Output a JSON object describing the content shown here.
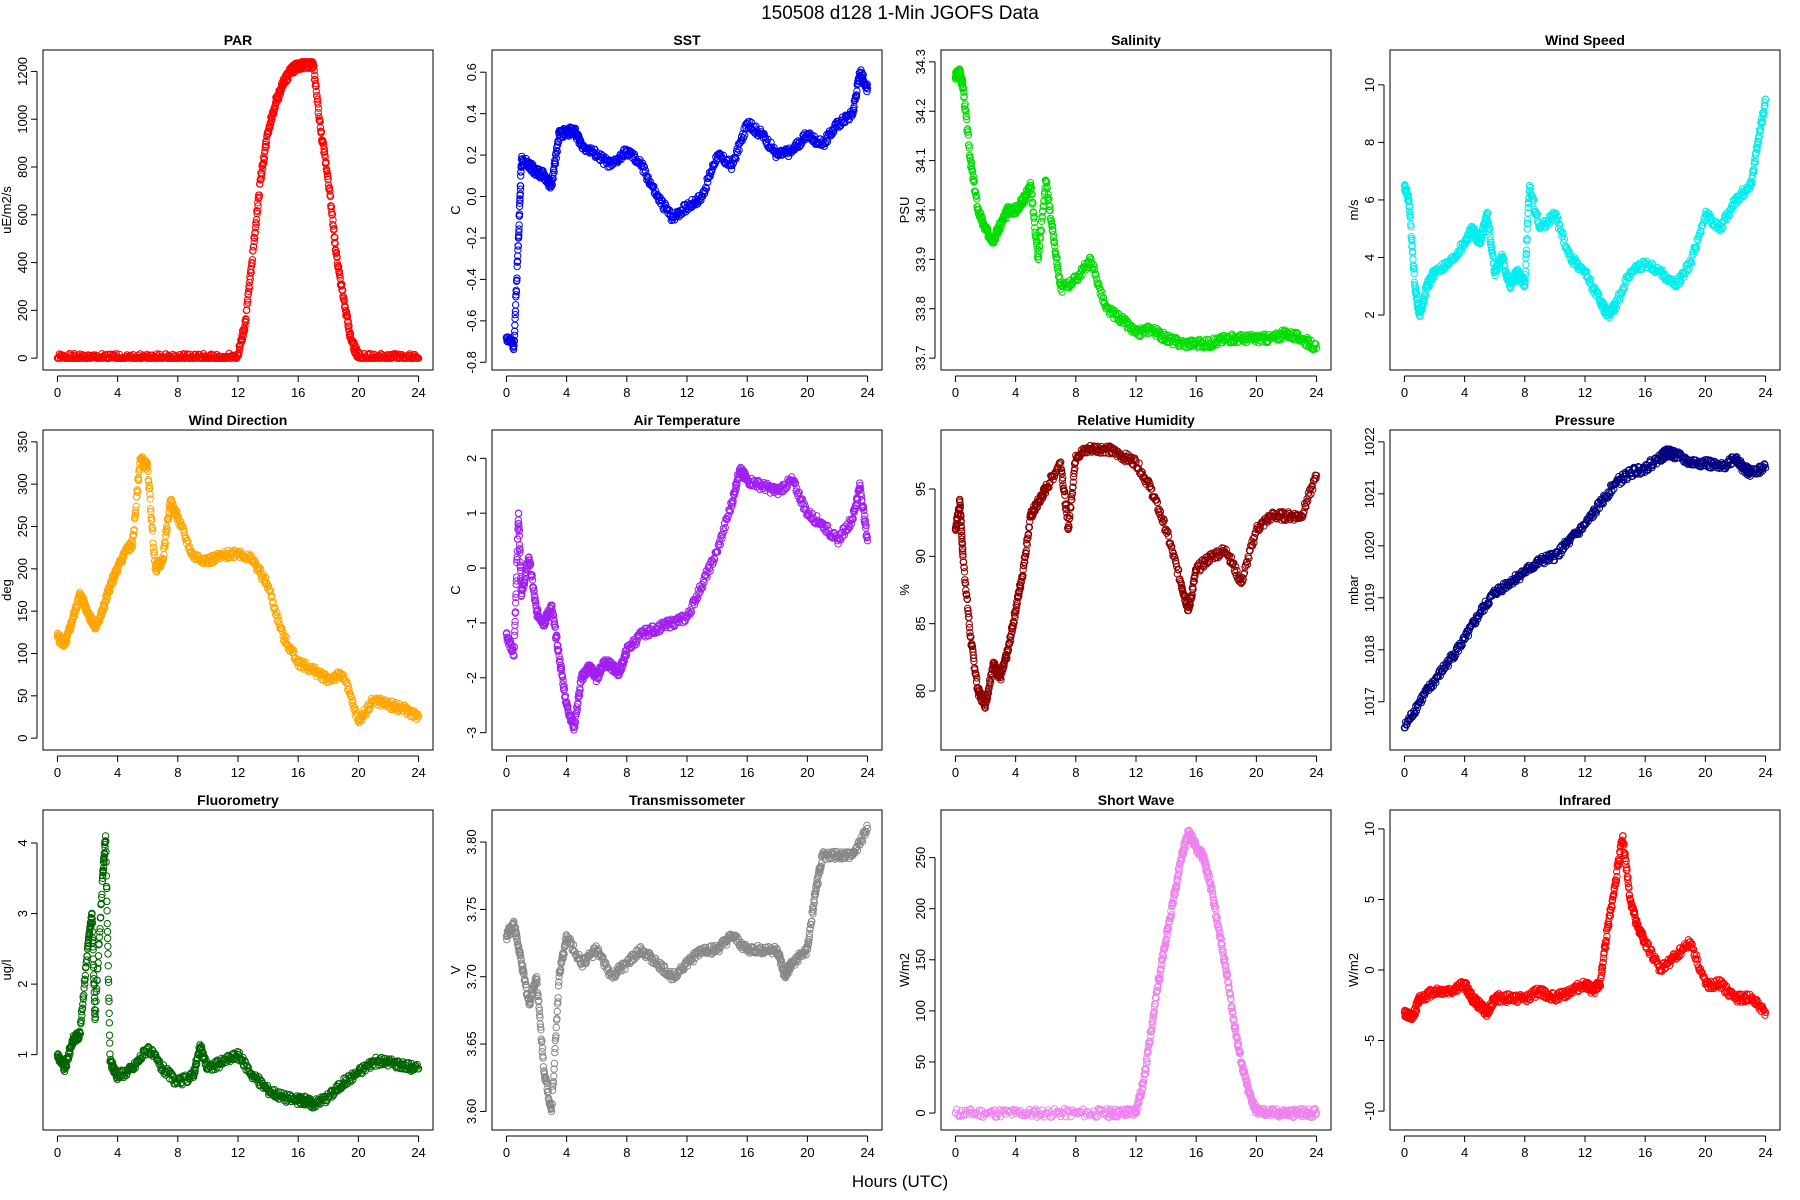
{
  "figure": {
    "title": "150508   d128   1-Min  JGOFS Data",
    "xlabel": "Hours (UTC)"
  },
  "chart_data": [
    {
      "type": "scatter",
      "title": "PAR",
      "ylabel": "uE/m2/s",
      "color": "#ff0000",
      "xlim": [
        0,
        24
      ],
      "xticks": [
        0,
        4,
        8,
        12,
        16,
        20,
        24
      ],
      "ylim": [
        0,
        1240
      ],
      "yticks": [
        0,
        200,
        400,
        600,
        800,
        1000,
        1200
      ],
      "x": [
        0,
        1,
        2,
        3,
        4,
        5,
        6,
        7,
        8,
        9,
        10,
        11,
        12,
        12.5,
        13,
        13.5,
        14,
        14.5,
        15,
        15.5,
        16,
        16.5,
        17,
        17.5,
        18,
        18.5,
        19,
        19.5,
        20,
        21,
        22,
        23,
        24
      ],
      "y": [
        0,
        0,
        0,
        0,
        0,
        0,
        0,
        0,
        0,
        0,
        0,
        0,
        10,
        150,
        450,
        750,
        950,
        1070,
        1150,
        1200,
        1225,
        1230,
        1230,
        950,
        750,
        450,
        250,
        80,
        5,
        0,
        0,
        0,
        0
      ]
    },
    {
      "type": "scatter",
      "title": "SST",
      "ylabel": "C",
      "color": "#0000ee",
      "xlim": [
        0,
        24
      ],
      "xticks": [
        0,
        4,
        8,
        12,
        16,
        20,
        24
      ],
      "ylim": [
        -0.78,
        0.65
      ],
      "yticks": [
        -0.8,
        -0.6,
        -0.4,
        -0.2,
        0.0,
        0.2,
        0.4,
        0.6
      ],
      "x": [
        0,
        0.5,
        0.8,
        1,
        1.5,
        2,
        2.5,
        3,
        3.5,
        4,
        4.5,
        5,
        6,
        7,
        8,
        9,
        10,
        11,
        12,
        13,
        14,
        15,
        16,
        17,
        18,
        19,
        20,
        21,
        22,
        23,
        23.5,
        24
      ],
      "y": [
        -0.68,
        -0.72,
        -0.2,
        0.18,
        0.15,
        0.12,
        0.1,
        0.05,
        0.3,
        0.31,
        0.32,
        0.25,
        0.2,
        0.15,
        0.22,
        0.15,
        0.0,
        -0.1,
        -0.05,
        0.0,
        0.2,
        0.15,
        0.35,
        0.3,
        0.2,
        0.22,
        0.3,
        0.25,
        0.35,
        0.4,
        0.6,
        0.52
      ]
    },
    {
      "type": "scatter",
      "title": "Salinity",
      "ylabel": "PSU",
      "color": "#00dd00",
      "xlim": [
        0,
        24
      ],
      "xticks": [
        0,
        4,
        8,
        12,
        16,
        20,
        24
      ],
      "ylim": [
        33.7,
        34.3
      ],
      "yticks": [
        33.7,
        33.8,
        33.9,
        34.0,
        34.1,
        34.2,
        34.3
      ],
      "x": [
        0,
        0.3,
        0.5,
        1,
        1.5,
        2,
        2.5,
        3,
        3.5,
        4,
        4.5,
        5,
        5.5,
        6,
        6.5,
        7,
        8,
        9,
        10,
        11,
        12,
        13,
        14,
        15,
        16,
        17,
        18,
        19,
        20,
        21,
        22,
        23,
        24
      ],
      "y": [
        34.27,
        34.28,
        34.25,
        34.1,
        34.0,
        33.96,
        33.94,
        33.97,
        34.0,
        34.0,
        34.02,
        34.05,
        33.9,
        34.06,
        33.95,
        33.84,
        33.86,
        33.9,
        33.8,
        33.78,
        33.75,
        33.76,
        33.74,
        33.73,
        33.73,
        33.73,
        33.74,
        33.74,
        33.74,
        33.74,
        33.75,
        33.74,
        33.72
      ]
    },
    {
      "type": "scatter",
      "title": "Wind Speed",
      "ylabel": "m/s",
      "color": "#00eeee",
      "xlim": [
        0,
        24
      ],
      "xticks": [
        0,
        4,
        8,
        12,
        16,
        20,
        24
      ],
      "ylim": [
        0.5,
        10.8
      ],
      "yticks": [
        2,
        4,
        6,
        8,
        10
      ],
      "x": [
        0,
        0.3,
        0.7,
        1,
        1.5,
        2,
        3,
        4,
        4.5,
        5,
        5.5,
        6,
        6.5,
        7,
        7.5,
        8,
        8.3,
        9,
        10,
        11,
        12,
        13,
        13.5,
        14,
        15,
        16,
        17,
        18,
        19,
        20,
        21,
        22,
        23,
        23.5,
        24
      ],
      "y": [
        6.5,
        6.0,
        3.0,
        2.0,
        3.0,
        3.5,
        3.8,
        4.5,
        5.0,
        4.5,
        5.5,
        3.5,
        4.0,
        3.0,
        3.5,
        3.0,
        6.5,
        5.0,
        5.5,
        4.0,
        3.5,
        2.5,
        2.0,
        2.3,
        3.5,
        3.8,
        3.5,
        3.0,
        3.8,
        5.5,
        5.0,
        6.0,
        6.5,
        8.0,
        9.5
      ]
    },
    {
      "type": "scatter",
      "title": "Wind Direction",
      "ylabel": "deg",
      "color": "#ffa500",
      "xlim": [
        0,
        24
      ],
      "xticks": [
        0,
        4,
        8,
        12,
        16,
        20,
        24
      ],
      "ylim": [
        0,
        350
      ],
      "yticks": [
        0,
        50,
        100,
        150,
        200,
        250,
        300,
        350
      ],
      "x": [
        0,
        0.5,
        1,
        1.5,
        2,
        2.5,
        3,
        3.5,
        4,
        4.5,
        5,
        5.5,
        6,
        6.5,
        7,
        7.5,
        8,
        9,
        10,
        11,
        12,
        13,
        14,
        15,
        16,
        17,
        18,
        19,
        20,
        21,
        22,
        23,
        24
      ],
      "y": [
        120,
        110,
        140,
        170,
        150,
        130,
        150,
        180,
        200,
        220,
        230,
        330,
        320,
        200,
        210,
        280,
        260,
        215,
        210,
        215,
        220,
        210,
        180,
        120,
        90,
        80,
        70,
        75,
        20,
        45,
        40,
        35,
        25
      ]
    },
    {
      "type": "scatter",
      "title": "Air Temperature",
      "ylabel": "C",
      "color": "#a020f0",
      "xlim": [
        0,
        24
      ],
      "xticks": [
        0,
        4,
        8,
        12,
        16,
        20,
        24
      ],
      "ylim": [
        -3.1,
        2.3
      ],
      "yticks": [
        -3,
        -2,
        -1,
        0,
        1,
        2
      ],
      "x": [
        0,
        0.5,
        0.8,
        1,
        1.5,
        2,
        2.5,
        3,
        3.5,
        4,
        4.5,
        5,
        5.5,
        6,
        6.5,
        7,
        7.5,
        8,
        9,
        10,
        11,
        12,
        13,
        14,
        15,
        15.5,
        16,
        17,
        18,
        19,
        20,
        21,
        22,
        23,
        23.5,
        24
      ],
      "y": [
        -1.2,
        -1.6,
        1.0,
        -0.5,
        0.2,
        -0.8,
        -1.0,
        -0.7,
        -1.6,
        -2.5,
        -2.9,
        -2.0,
        -1.8,
        -2.0,
        -1.7,
        -1.8,
        -1.9,
        -1.5,
        -1.2,
        -1.1,
        -1.0,
        -0.9,
        -0.3,
        0.3,
        1.2,
        1.8,
        1.6,
        1.5,
        1.4,
        1.6,
        1.0,
        0.8,
        0.5,
        0.9,
        1.5,
        0.5
      ]
    },
    {
      "type": "scatter",
      "title": "Relative Humidity",
      "ylabel": "%",
      "color": "#8b0000",
      "xlim": [
        0,
        24
      ],
      "xticks": [
        0,
        4,
        8,
        12,
        16,
        20,
        24
      ],
      "ylim": [
        76.5,
        98.5
      ],
      "yticks": [
        80,
        85,
        90,
        95
      ],
      "x": [
        0,
        0.3,
        0.5,
        1,
        1.5,
        2,
        2.5,
        3,
        3.5,
        4,
        4.5,
        5,
        5.5,
        6,
        7,
        7.5,
        8,
        9,
        10,
        11,
        12,
        13,
        14,
        15,
        15.5,
        16,
        17,
        18,
        19,
        20,
        21,
        22,
        23,
        24
      ],
      "y": [
        92,
        94,
        90,
        84,
        80,
        79,
        82,
        81,
        83,
        86,
        89,
        93,
        94,
        95,
        97,
        92,
        97.5,
        98,
        98,
        97.5,
        97,
        95,
        92,
        88,
        86,
        89,
        90,
        90.5,
        88,
        92,
        93,
        93,
        93,
        96
      ]
    },
    {
      "type": "scatter",
      "title": "Pressure",
      "ylabel": "mbar",
      "color": "#000080",
      "xlim": [
        0,
        24
      ],
      "xticks": [
        0,
        4,
        8,
        12,
        16,
        20,
        24
      ],
      "ylim": [
        1016.3,
        1022.0
      ],
      "yticks": [
        1017,
        1018,
        1019,
        1020,
        1021,
        1022
      ],
      "x": [
        0,
        1,
        2,
        3,
        4,
        5,
        6,
        7,
        8,
        9,
        10,
        11,
        12,
        13,
        14,
        15,
        16,
        17,
        17.5,
        18,
        19,
        20,
        21,
        22,
        22.5,
        23,
        24
      ],
      "y": [
        1016.5,
        1017.0,
        1017.4,
        1017.8,
        1018.2,
        1018.7,
        1019.1,
        1019.3,
        1019.5,
        1019.7,
        1019.8,
        1020.1,
        1020.4,
        1020.8,
        1021.2,
        1021.4,
        1021.5,
        1021.7,
        1021.8,
        1021.75,
        1021.6,
        1021.6,
        1021.5,
        1021.7,
        1021.5,
        1021.4,
        1021.5
      ]
    },
    {
      "type": "scatter",
      "title": "Fluorometry",
      "ylabel": "ug/l",
      "color": "#006400",
      "xlim": [
        0,
        24
      ],
      "xticks": [
        0,
        4,
        8,
        12,
        16,
        20,
        24
      ],
      "ylim": [
        0.1,
        4.3
      ],
      "yticks": [
        1,
        2,
        3,
        4
      ],
      "x": [
        0,
        0.5,
        1,
        1.5,
        2,
        2.3,
        2.5,
        3,
        3.2,
        3.5,
        4,
        5,
        6,
        7,
        8,
        9,
        9.5,
        10,
        11,
        12,
        13,
        14,
        15,
        16,
        16.5,
        17,
        18,
        19,
        20,
        21,
        22,
        23,
        24
      ],
      "y": [
        1.0,
        0.8,
        1.2,
        1.3,
        2.5,
        3.0,
        1.5,
        3.5,
        4.1,
        0.9,
        0.7,
        0.8,
        1.1,
        0.8,
        0.6,
        0.7,
        1.1,
        0.8,
        0.9,
        1.0,
        0.7,
        0.5,
        0.4,
        0.35,
        0.35,
        0.3,
        0.4,
        0.6,
        0.75,
        0.9,
        0.9,
        0.85,
        0.8
      ]
    },
    {
      "type": "scatter",
      "title": "Transmissometer",
      "ylabel": "V",
      "color": "#888888",
      "xlim": [
        0,
        24
      ],
      "xticks": [
        0,
        4,
        8,
        12,
        16,
        20,
        24
      ],
      "ylim": [
        3.595,
        3.815
      ],
      "yticks": [
        3.6,
        3.65,
        3.7,
        3.75,
        3.8
      ],
      "x": [
        0,
        0.5,
        1,
        1.5,
        2,
        2.5,
        3,
        3.5,
        4,
        5,
        6,
        7,
        8,
        9,
        10,
        11,
        12,
        13,
        14,
        15,
        16,
        17,
        18,
        18.5,
        19,
        20,
        20.5,
        21,
        22,
        23,
        24
      ],
      "y": [
        3.73,
        3.74,
        3.71,
        3.68,
        3.7,
        3.63,
        3.6,
        3.7,
        3.73,
        3.71,
        3.72,
        3.7,
        3.71,
        3.72,
        3.71,
        3.7,
        3.71,
        3.72,
        3.72,
        3.73,
        3.72,
        3.72,
        3.72,
        3.7,
        3.71,
        3.72,
        3.76,
        3.79,
        3.79,
        3.79,
        3.81
      ]
    },
    {
      "type": "scatter",
      "title": "Short Wave",
      "ylabel": "W/m2",
      "color": "#ee82ee",
      "xlim": [
        0,
        24
      ],
      "xticks": [
        0,
        4,
        8,
        12,
        16,
        20,
        24
      ],
      "ylim": [
        -5,
        285
      ],
      "yticks": [
        0,
        50,
        100,
        150,
        200,
        250
      ],
      "x": [
        0,
        2,
        4,
        6,
        8,
        10,
        11,
        12,
        12.5,
        13,
        13.5,
        14,
        14.5,
        15,
        15.5,
        16,
        16.5,
        17,
        17.5,
        18,
        18.5,
        19,
        19.5,
        20,
        21,
        22,
        23,
        24
      ],
      "y": [
        0,
        0,
        0,
        0,
        0,
        0,
        0,
        2,
        30,
        80,
        130,
        170,
        210,
        250,
        275,
        260,
        250,
        220,
        180,
        140,
        90,
        50,
        20,
        2,
        0,
        0,
        0,
        0
      ]
    },
    {
      "type": "scatter",
      "title": "Infrared",
      "ylabel": "W/m2",
      "color": "#ff0000",
      "xlim": [
        0,
        24
      ],
      "xticks": [
        0,
        4,
        8,
        12,
        16,
        20,
        24
      ],
      "ylim": [
        -10.5,
        10.5
      ],
      "yticks": [
        -10,
        -5,
        0,
        5,
        10
      ],
      "x": [
        0,
        0.5,
        1,
        2,
        3,
        4,
        4.5,
        5,
        5.5,
        6,
        7,
        8,
        9,
        10,
        11,
        12,
        12.5,
        13,
        13.5,
        14,
        14.5,
        15,
        15.5,
        16,
        17,
        18,
        19,
        20,
        21,
        22,
        23,
        24
      ],
      "y": [
        -3,
        -3.5,
        -2,
        -1.5,
        -1.5,
        -1,
        -2,
        -2.5,
        -3,
        -2,
        -2,
        -2,
        -1.5,
        -2,
        -1.5,
        -1,
        -1.5,
        -1,
        3,
        6,
        9.5,
        5,
        3,
        2,
        0,
        1,
        2,
        -1,
        -1,
        -2,
        -2,
        -3
      ]
    }
  ]
}
